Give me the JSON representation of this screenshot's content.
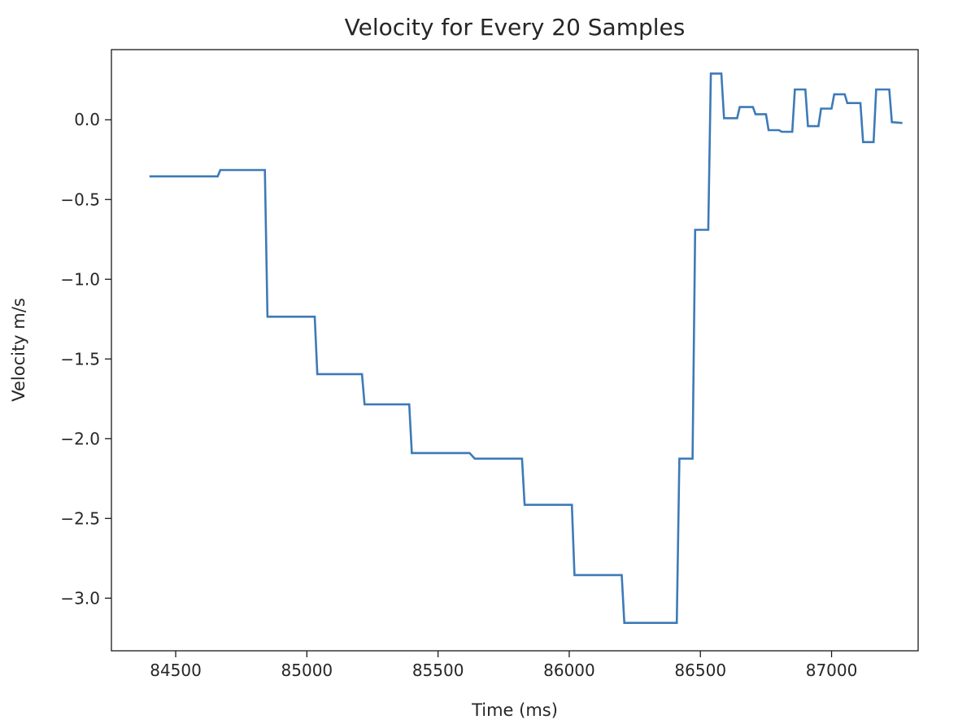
{
  "chart_data": {
    "type": "line",
    "title": "Velocity for Every 20 Samples",
    "xlabel": "Time (ms)",
    "ylabel": "Velocity m/s",
    "xlim": [
      84255,
      87330
    ],
    "ylim": [
      -3.33,
      0.44
    ],
    "grid": false,
    "line_style": "step",
    "series_color": "#3d7ab8",
    "x_ticks": [
      {
        "value": 84500,
        "label": "84500"
      },
      {
        "value": 85000,
        "label": "85000"
      },
      {
        "value": 85500,
        "label": "85500"
      },
      {
        "value": 86000,
        "label": "86000"
      },
      {
        "value": 86500,
        "label": "86500"
      },
      {
        "value": 87000,
        "label": "87000"
      }
    ],
    "y_ticks": [
      {
        "value": 0.0,
        "label": "0.0"
      },
      {
        "value": -0.5,
        "label": "−0.5"
      },
      {
        "value": -1.0,
        "label": "−1.0"
      },
      {
        "value": -1.5,
        "label": "−1.5"
      },
      {
        "value": -2.0,
        "label": "−2.0"
      },
      {
        "value": -2.5,
        "label": "−2.5"
      },
      {
        "value": -3.0,
        "label": "−3.0"
      }
    ],
    "series": [
      {
        "x": [
          84400,
          84660,
          84670,
          84840,
          84850,
          85030,
          85040,
          85210,
          85220,
          85390,
          85400,
          85620,
          85640,
          85820,
          85830,
          86010,
          86020,
          86200,
          86210,
          86410,
          86420,
          86470,
          86480,
          86530,
          86540,
          86580,
          86590,
          86640,
          86650,
          86700,
          86710,
          86750,
          86760,
          86800,
          86810,
          86850,
          86860,
          86900,
          86910,
          86950,
          86960,
          87000,
          87010,
          87050,
          87060,
          87110,
          87120,
          87160,
          87170,
          87220,
          87230,
          87270
        ],
        "y": [
          -0.355,
          -0.355,
          -0.315,
          -0.315,
          -1.235,
          -1.235,
          -1.595,
          -1.595,
          -1.785,
          -1.785,
          -2.09,
          -2.09,
          -2.125,
          -2.125,
          -2.415,
          -2.415,
          -2.855,
          -2.855,
          -3.155,
          -3.155,
          -2.125,
          -2.125,
          -0.69,
          -0.69,
          0.29,
          0.29,
          0.01,
          0.01,
          0.08,
          0.08,
          0.035,
          0.035,
          -0.065,
          -0.065,
          -0.075,
          -0.075,
          0.19,
          0.19,
          -0.04,
          -0.04,
          0.07,
          0.07,
          0.16,
          0.16,
          0.105,
          0.105,
          -0.14,
          -0.14,
          0.19,
          0.19,
          -0.015,
          -0.02
        ]
      }
    ]
  }
}
